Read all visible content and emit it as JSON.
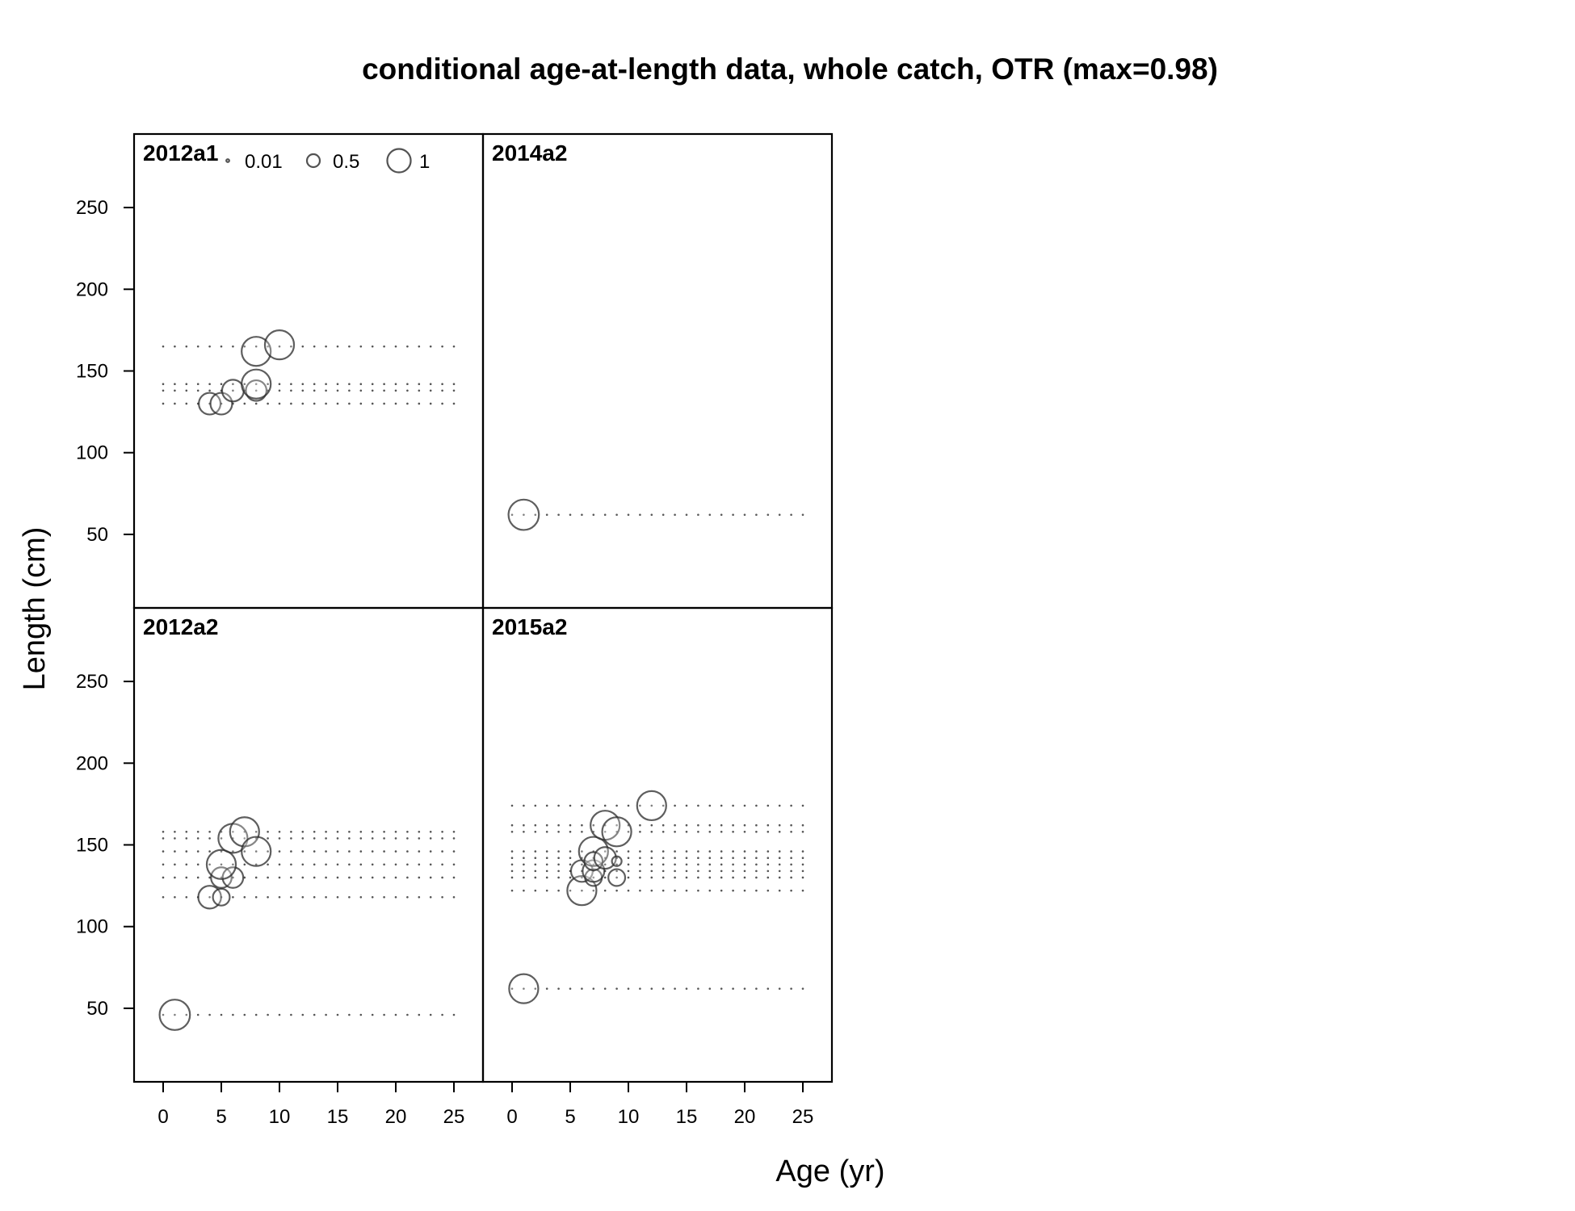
{
  "chart_data": {
    "type": "scatter",
    "title": "conditional age-at-length data, whole catch, OTR (max=0.98)",
    "xlabel": "Age (yr)",
    "ylabel": "Length (cm)",
    "xlim": [
      -2.5,
      27.5
    ],
    "ylim": [
      5,
      295
    ],
    "x_ticks": [
      "0",
      "5",
      "10",
      "15",
      "20",
      "25"
    ],
    "y_ticks": [
      "50",
      "100",
      "150",
      "200",
      "250"
    ],
    "grid": false,
    "legend": {
      "placement": "top-left of first panel",
      "entries": [
        {
          "label": "0.01",
          "value": 0.01
        },
        {
          "label": "0.5",
          "value": 0.5
        },
        {
          "label": "1",
          "value": 1.0
        }
      ]
    },
    "dotted_row_age_range": [
      0,
      25
    ],
    "panels": [
      {
        "label": "2012a1",
        "row": 0,
        "col": 0,
        "lengths": [
          130,
          138,
          142,
          165
        ],
        "points": [
          {
            "age": 4,
            "length": 130,
            "p": 0.5
          },
          {
            "age": 5,
            "length": 130,
            "p": 0.5
          },
          {
            "age": 6,
            "length": 138,
            "p": 0.5
          },
          {
            "age": 8,
            "length": 138,
            "p": 0.45
          },
          {
            "age": 8,
            "length": 142,
            "p": 0.9
          },
          {
            "age": 8,
            "length": 162,
            "p": 0.9
          },
          {
            "age": 10,
            "length": 166,
            "p": 0.9
          }
        ]
      },
      {
        "label": "2014a2",
        "row": 0,
        "col": 1,
        "lengths": [
          62
        ],
        "points": [
          {
            "age": 1,
            "length": 62,
            "p": 0.98
          }
        ]
      },
      {
        "label": "2012a2",
        "row": 1,
        "col": 0,
        "lengths": [
          46,
          118,
          130,
          138,
          146,
          154,
          158
        ],
        "points": [
          {
            "age": 1,
            "length": 46,
            "p": 0.98
          },
          {
            "age": 4,
            "length": 118,
            "p": 0.55
          },
          {
            "age": 5,
            "length": 118,
            "p": 0.3
          },
          {
            "age": 5,
            "length": 130,
            "p": 0.45
          },
          {
            "age": 6,
            "length": 130,
            "p": 0.45
          },
          {
            "age": 5,
            "length": 138,
            "p": 0.9
          },
          {
            "age": 6,
            "length": 154,
            "p": 0.9
          },
          {
            "age": 7,
            "length": 158,
            "p": 0.9
          },
          {
            "age": 8,
            "length": 146,
            "p": 0.9
          }
        ]
      },
      {
        "label": "2015a2",
        "row": 1,
        "col": 1,
        "lengths": [
          62,
          122,
          130,
          134,
          138,
          142,
          146,
          158,
          162,
          174
        ],
        "points": [
          {
            "age": 1,
            "length": 62,
            "p": 0.9
          },
          {
            "age": 6,
            "length": 122,
            "p": 0.9
          },
          {
            "age": 6,
            "length": 134,
            "p": 0.5
          },
          {
            "age": 7,
            "length": 130,
            "p": 0.3
          },
          {
            "age": 7,
            "length": 134,
            "p": 0.5
          },
          {
            "age": 7,
            "length": 146,
            "p": 0.9
          },
          {
            "age": 7,
            "length": 140,
            "p": 0.35
          },
          {
            "age": 8,
            "length": 142,
            "p": 0.5
          },
          {
            "age": 8,
            "length": 162,
            "p": 0.9
          },
          {
            "age": 9,
            "length": 130,
            "p": 0.3
          },
          {
            "age": 9,
            "length": 140,
            "p": 0.1
          },
          {
            "age": 9,
            "length": 158,
            "p": 0.9
          },
          {
            "age": 12,
            "length": 174,
            "p": 0.9
          }
        ]
      }
    ]
  }
}
